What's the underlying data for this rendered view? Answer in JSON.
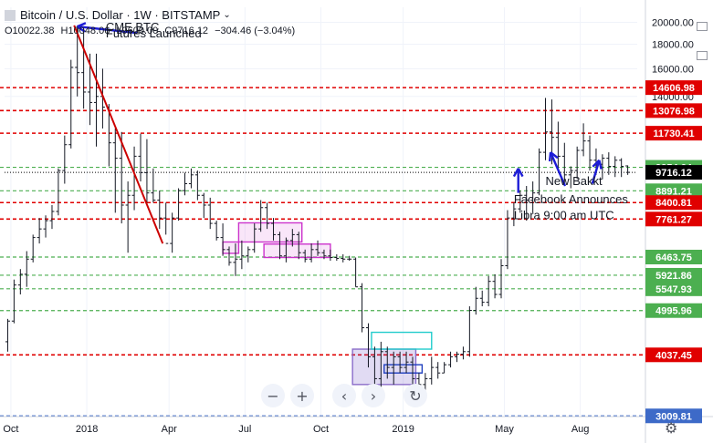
{
  "header": {
    "title": "Bitcoin / U.S. Dollar · 1W · BITSTAMP",
    "ohlc": {
      "open": "O10022.38",
      "high": "H10048.06",
      "low": "L9600.00",
      "close": "C9716.12",
      "change": "−304.46 (−3.04%)"
    }
  },
  "colors": {
    "up_down_bars": "#131722",
    "red_level": "#e00000",
    "green_level": "#4caf50",
    "blue_level": "#3d6ac8",
    "price_line": "#000000",
    "trend": "#cc0000",
    "arrow": "#1c1cd6",
    "range_magenta": "#cc33cc",
    "range_cyan": "#22cccc",
    "range_blue": "#1f3fbf"
  },
  "toolbar": [
    {
      "name": "zoom-out-button",
      "icon": "minus-icon",
      "glyph": "−"
    },
    {
      "name": "zoom-in-button",
      "icon": "plus-icon",
      "glyph": "+"
    },
    {
      "name": "scroll-left-button",
      "icon": "chevron-left-icon",
      "glyph": "‹"
    },
    {
      "name": "scroll-right-button",
      "icon": "chevron-right-icon",
      "glyph": "›"
    },
    {
      "name": "reset-button",
      "icon": "reset-icon",
      "glyph": "↻"
    }
  ],
  "chart_data": {
    "type": "bar",
    "subtype": "ohlc",
    "title": "Bitcoin / U.S. Dollar · 1W · BITSTAMP",
    "ylim": [
      3000,
      21500
    ],
    "xlim": [
      0,
      100
    ],
    "y_ticks": [
      20000,
      18000,
      16000,
      14000
    ],
    "y_tick_labels": [
      "20000.00",
      "18000.00",
      "16000.00",
      "14000.00"
    ],
    "x_ticks": [
      {
        "label": "Oct",
        "x": 1
      },
      {
        "label": "2018",
        "x": 13
      },
      {
        "label": "Apr",
        "x": 26
      },
      {
        "label": "Jul",
        "x": 38
      },
      {
        "label": "Oct",
        "x": 50
      },
      {
        "label": "2019",
        "x": 63
      },
      {
        "label": "May",
        "x": 79
      },
      {
        "label": "Aug",
        "x": 91
      }
    ],
    "levels": [
      {
        "value": 14606.98,
        "label": "14606.98",
        "kind": "red"
      },
      {
        "value": 13076.98,
        "label": "13076.98",
        "kind": "red"
      },
      {
        "value": 11730.41,
        "label": "11730.41",
        "kind": "red"
      },
      {
        "value": 9954.64,
        "label": "9954.64",
        "kind": "green"
      },
      {
        "value": 9716.12,
        "label": "9716.12",
        "kind": "current"
      },
      {
        "value": 8891.21,
        "label": "8891.21",
        "kind": "green"
      },
      {
        "value": 8400.81,
        "label": "8400.81",
        "kind": "red"
      },
      {
        "value": 7761.27,
        "label": "7761.27",
        "kind": "red"
      },
      {
        "value": 6463.75,
        "label": "6463.75",
        "kind": "green"
      },
      {
        "value": 5921.86,
        "label": "5921.86",
        "kind": "green"
      },
      {
        "value": 5547.93,
        "label": "5547.93",
        "kind": "green"
      },
      {
        "value": 4995.96,
        "label": "4995.96",
        "kind": "green"
      },
      {
        "value": 4037.45,
        "label": "4037.45",
        "kind": "red"
      },
      {
        "value": 3009.81,
        "label": "3009.81",
        "kind": "blue"
      }
    ],
    "bars": [
      [
        0,
        4300,
        4800,
        4100,
        4750
      ],
      [
        1,
        4750,
        5800,
        4700,
        5650
      ],
      [
        2,
        5650,
        6100,
        5400,
        5950
      ],
      [
        3,
        5950,
        6650,
        5600,
        6400
      ],
      [
        4,
        6400,
        7200,
        6300,
        7100
      ],
      [
        5,
        7100,
        7800,
        6900,
        7400
      ],
      [
        6,
        7400,
        7900,
        7100,
        7700
      ],
      [
        7,
        7700,
        8300,
        7400,
        8050
      ],
      [
        8,
        8050,
        9900,
        7900,
        9800
      ],
      [
        9,
        9800,
        11600,
        9200,
        11100
      ],
      [
        10,
        11100,
        16700,
        10900,
        16100
      ],
      [
        11,
        16100,
        19700,
        14000,
        15700
      ],
      [
        12,
        15700,
        19400,
        13200,
        14300
      ],
      [
        13,
        14300,
        17200,
        12200,
        13600
      ],
      [
        14,
        13600,
        17200,
        11000,
        14000
      ],
      [
        15,
        14000,
        16000,
        12000,
        13300
      ],
      [
        16,
        13300,
        13500,
        10000,
        11200
      ],
      [
        17,
        11200,
        12000,
        8000,
        10400
      ],
      [
        18,
        10400,
        11800,
        7600,
        8300
      ],
      [
        19,
        8300,
        9300,
        6600,
        8700
      ],
      [
        20,
        8700,
        11000,
        8100,
        10500
      ],
      [
        21,
        10500,
        11700,
        9300,
        9700
      ],
      [
        22,
        9700,
        11400,
        8300,
        8800
      ],
      [
        23,
        8800,
        9900,
        8400,
        8500
      ],
      [
        24,
        8500,
        8900,
        7400,
        7800
      ],
      [
        25,
        7800,
        8400,
        7200,
        6900
      ],
      [
        26,
        6900,
        8000,
        6600,
        7800
      ],
      [
        27,
        7800,
        9000,
        7700,
        8900
      ],
      [
        28,
        8900,
        9700,
        8700,
        9200
      ],
      [
        29,
        9200,
        9900,
        9000,
        9600
      ],
      [
        30,
        9600,
        9800,
        8500,
        8700
      ],
      [
        31,
        8700,
        8800,
        7800,
        8300
      ],
      [
        32,
        8300,
        8600,
        7400,
        7600
      ],
      [
        33,
        7600,
        7700,
        7000,
        7100
      ],
      [
        34,
        7100,
        7600,
        6500,
        6700
      ],
      [
        35,
        6700,
        6800,
        6200,
        6300
      ],
      [
        36,
        6300,
        6900,
        5900,
        6400
      ],
      [
        37,
        6400,
        7000,
        6100,
        6500
      ],
      [
        38,
        6500,
        6800,
        6300,
        6700
      ],
      [
        39,
        6700,
        7600,
        6600,
        7400
      ],
      [
        40,
        7400,
        8500,
        7300,
        8200
      ],
      [
        41,
        8200,
        8400,
        7400,
        7600
      ],
      [
        42,
        7600,
        7800,
        7000,
        7200
      ],
      [
        43,
        7200,
        7300,
        6400,
        6500
      ],
      [
        44,
        6500,
        7100,
        6300,
        7000
      ],
      [
        45,
        7000,
        7400,
        6800,
        7200
      ],
      [
        46,
        7200,
        7300,
        6400,
        6600
      ],
      [
        47,
        6600,
        6700,
        6300,
        6400
      ],
      [
        48,
        6400,
        6900,
        6300,
        6700
      ],
      [
        49,
        6700,
        7000,
        6500,
        6600
      ],
      [
        50,
        6600,
        6700,
        6400,
        6500
      ],
      [
        51,
        6500,
        6700,
        6350,
        6450
      ],
      [
        52,
        6450,
        6550,
        6350,
        6420
      ],
      [
        53,
        6420,
        6550,
        6300,
        6400
      ],
      [
        54,
        6400,
        6500,
        6350,
        6400
      ],
      [
        55,
        6400,
        6450,
        5600,
        5600
      ],
      [
        56,
        5600,
        5700,
        4500,
        4600
      ],
      [
        57,
        4600,
        4700,
        3800,
        4000
      ],
      [
        58,
        4000,
        4200,
        3400,
        3600
      ],
      [
        59,
        3600,
        4300,
        3300,
        4100
      ],
      [
        60,
        4100,
        4200,
        3600,
        3800
      ],
      [
        61,
        3800,
        4100,
        3500,
        4000
      ],
      [
        62,
        4000,
        4100,
        3700,
        3800
      ],
      [
        63,
        3800,
        4100,
        3700,
        3900
      ],
      [
        64,
        3900,
        4000,
        3500,
        3600
      ],
      [
        65,
        3600,
        3700,
        3400,
        3500
      ],
      [
        66,
        3500,
        3700,
        3400,
        3600
      ],
      [
        67,
        3600,
        4000,
        3500,
        3800
      ],
      [
        68,
        3800,
        3900,
        3600,
        3700
      ],
      [
        69,
        3700,
        3900,
        3700,
        3850
      ],
      [
        70,
        3850,
        4100,
        3800,
        4000
      ],
      [
        71,
        4000,
        4100,
        3900,
        4050
      ],
      [
        72,
        4050,
        4200,
        3950,
        4100
      ],
      [
        73,
        4100,
        5100,
        4000,
        5000
      ],
      [
        74,
        5000,
        5600,
        4900,
        5300
      ],
      [
        75,
        5300,
        5500,
        5100,
        5200
      ],
      [
        76,
        5200,
        5900,
        5100,
        5750
      ],
      [
        77,
        5750,
        5950,
        5300,
        5400
      ],
      [
        78,
        5400,
        6400,
        5300,
        6200
      ],
      [
        79,
        6200,
        8100,
        6100,
        7800
      ],
      [
        80,
        7800,
        8400,
        7500,
        8150
      ],
      [
        81,
        8150,
        8900,
        8000,
        8700
      ],
      [
        82,
        8700,
        9100,
        7700,
        8500
      ],
      [
        83,
        8500,
        9300,
        8000,
        8800
      ],
      [
        84,
        8800,
        10900,
        8700,
        10700
      ],
      [
        85,
        10700,
        13900,
        10300,
        11800
      ],
      [
        86,
        11800,
        13800,
        10100,
        11500
      ],
      [
        87,
        11500,
        12400,
        9900,
        10500
      ],
      [
        88,
        10500,
        11200,
        9100,
        9600
      ],
      [
        89,
        9600,
        10000,
        9000,
        9800
      ],
      [
        90,
        9800,
        11000,
        9400,
        10800
      ],
      [
        91,
        10800,
        12300,
        10500,
        11300
      ],
      [
        92,
        11300,
        11600,
        9800,
        10300
      ],
      [
        93,
        10300,
        10900,
        9600,
        10100
      ],
      [
        94,
        10100,
        10600,
        9400,
        10400
      ],
      [
        95,
        10400,
        10700,
        9600,
        10000
      ],
      [
        96,
        10000,
        10500,
        9500,
        10300
      ],
      [
        97,
        10300,
        10400,
        9500,
        10000
      ],
      [
        98,
        10022.38,
        10048.06,
        9600,
        9716.12
      ]
    ],
    "trend_line": [
      [
        11,
        19700
      ],
      [
        25,
        6900
      ]
    ],
    "annotations": [
      {
        "text": "CME BTC",
        "x": 16,
        "y": 19200
      },
      {
        "text": "Futures Launched",
        "x": 16,
        "y": 18600
      },
      {
        "text": "New Bakkt",
        "x": 85.5,
        "y": 9150
      },
      {
        "text": "Facebook Announces",
        "x": 80.5,
        "y": 8380
      },
      {
        "text": "Libra 9:00 am UTC",
        "x": 80.5,
        "y": 7750
      }
    ],
    "arrows": [
      {
        "from": [
          21,
          19000
        ],
        "to": [
          11.5,
          19600
        ]
      },
      {
        "from": [
          81.2,
          8800
        ],
        "to": [
          81.2,
          9900
        ]
      },
      {
        "from": [
          88.6,
          9100
        ],
        "to": [
          86.3,
          10700
        ]
      },
      {
        "from": [
          92.9,
          9200
        ],
        "to": [
          94,
          10300
        ]
      }
    ],
    "boxes": [
      {
        "x0": 34.5,
        "x1": 37,
        "y0": 6580,
        "y1": 6950,
        "color": "magenta"
      },
      {
        "x0": 37,
        "x1": 47,
        "y0": 6950,
        "y1": 7620,
        "color": "magenta"
      },
      {
        "x0": 41,
        "x1": 51.5,
        "y0": 6450,
        "y1": 6880,
        "color": "magenta"
      },
      {
        "x0": 55,
        "x1": 65,
        "y0": 3500,
        "y1": 4150,
        "color": "purple-fill"
      },
      {
        "x0": 58,
        "x1": 67.5,
        "y0": 4150,
        "y1": 4500,
        "color": "cyan"
      },
      {
        "x0": 60,
        "x1": 66,
        "y0": 3700,
        "y1": 3850,
        "color": "blue"
      }
    ]
  }
}
